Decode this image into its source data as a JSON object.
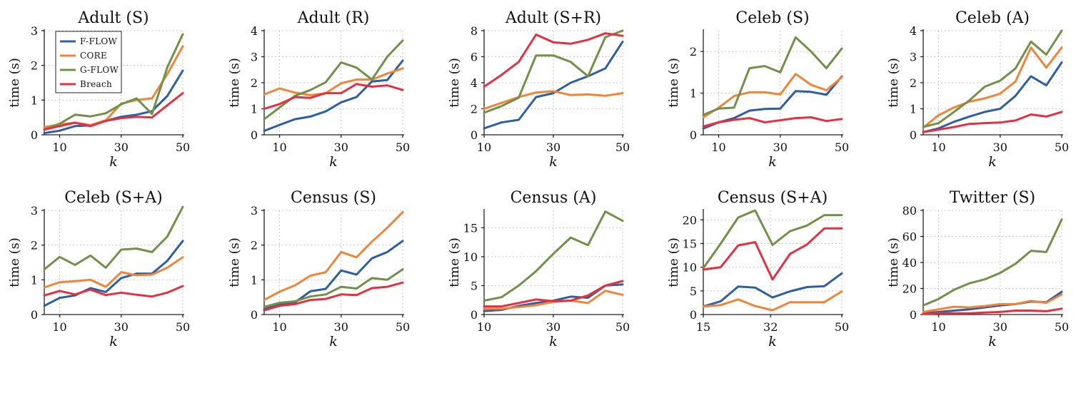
{
  "legend": [
    {
      "name": "F-FLOW",
      "color": "#2f5fa0"
    },
    {
      "name": "CORE",
      "color": "#f08539"
    },
    {
      "name": "G-FLOW",
      "color": "#72904a"
    },
    {
      "name": "Breach",
      "color": "#e43041"
    }
  ],
  "chart_data": [
    {
      "type": "line",
      "title": "Adult (S)",
      "xlabel": "k",
      "ylabel": "time (s)",
      "xlim": [
        5,
        50
      ],
      "ylim": [
        0,
        3
      ],
      "xticks": [
        10,
        30,
        50
      ],
      "yticks": [
        0,
        1,
        2,
        3
      ],
      "x": [
        5,
        10,
        15,
        20,
        25,
        30,
        35,
        40,
        45,
        50
      ],
      "series": [
        {
          "name": "F-FLOW",
          "values": [
            0.05,
            0.12,
            0.25,
            0.27,
            0.4,
            0.52,
            0.58,
            0.68,
            1.12,
            1.85
          ]
        },
        {
          "name": "CORE",
          "values": [
            0.22,
            0.3,
            0.35,
            0.28,
            0.42,
            0.9,
            1.0,
            1.05,
            1.75,
            2.55
          ]
        },
        {
          "name": "G-FLOW",
          "values": [
            0.15,
            0.32,
            0.58,
            0.53,
            0.62,
            0.88,
            1.05,
            0.6,
            1.95,
            2.9
          ]
        },
        {
          "name": "Breach",
          "values": [
            0.15,
            0.25,
            0.35,
            0.25,
            0.4,
            0.48,
            0.52,
            0.5,
            0.85,
            1.2
          ]
        }
      ]
    },
    {
      "type": "line",
      "title": "Adult (R)",
      "xlabel": "k",
      "ylabel": "time (s)",
      "xlim": [
        5,
        50
      ],
      "ylim": [
        0,
        4
      ],
      "xticks": [
        10,
        30,
        50
      ],
      "yticks": [
        0,
        1,
        2,
        3,
        4
      ],
      "x": [
        5,
        10,
        15,
        20,
        25,
        30,
        35,
        40,
        45,
        50
      ],
      "series": [
        {
          "name": "F-FLOW",
          "values": [
            0.15,
            0.38,
            0.6,
            0.7,
            0.9,
            1.25,
            1.45,
            2.05,
            2.1,
            2.85
          ]
        },
        {
          "name": "CORE",
          "values": [
            1.55,
            1.78,
            1.62,
            1.52,
            1.6,
            1.98,
            2.12,
            2.12,
            2.35,
            2.55
          ]
        },
        {
          "name": "G-FLOW",
          "values": [
            0.6,
            1.05,
            1.5,
            1.72,
            2.02,
            2.78,
            2.58,
            2.12,
            3.0,
            3.62
          ]
        },
        {
          "name": "Breach",
          "values": [
            1.0,
            1.18,
            1.45,
            1.42,
            1.6,
            1.6,
            1.95,
            1.85,
            1.9,
            1.72
          ]
        }
      ]
    },
    {
      "type": "line",
      "title": "Adult (S+R)",
      "xlabel": "k",
      "ylabel": "time (s)",
      "xlim": [
        10,
        50
      ],
      "ylim": [
        0,
        8
      ],
      "xticks": [
        10,
        30,
        50
      ],
      "yticks": [
        0,
        2,
        4,
        6,
        8
      ],
      "x": [
        10,
        15,
        20,
        25,
        30,
        35,
        40,
        45,
        50
      ],
      "series": [
        {
          "name": "F-FLOW",
          "values": [
            0.5,
            0.95,
            1.15,
            2.9,
            3.2,
            4.0,
            4.5,
            5.1,
            7.15
          ]
        },
        {
          "name": "CORE",
          "values": [
            2.0,
            2.45,
            2.9,
            3.25,
            3.35,
            3.05,
            3.1,
            3.0,
            3.2
          ]
        },
        {
          "name": "G-FLOW",
          "values": [
            1.7,
            2.2,
            2.85,
            6.1,
            6.1,
            5.6,
            4.5,
            7.5,
            8.0
          ]
        },
        {
          "name": "Breach",
          "values": [
            3.7,
            4.6,
            5.6,
            7.7,
            7.1,
            7.0,
            7.3,
            7.8,
            7.6
          ]
        }
      ]
    },
    {
      "type": "line",
      "title": "Celeb (S)",
      "xlabel": "k",
      "ylabel": "time (s)",
      "xlim": [
        5,
        50
      ],
      "ylim": [
        0,
        2.5
      ],
      "xticks": [
        10,
        30,
        50
      ],
      "yticks": [
        0,
        1,
        2
      ],
      "x": [
        5,
        10,
        15,
        20,
        25,
        30,
        35,
        40,
        45,
        50
      ],
      "series": [
        {
          "name": "F-FLOW",
          "values": [
            0.15,
            0.3,
            0.4,
            0.58,
            0.62,
            0.63,
            1.05,
            1.03,
            0.96,
            1.4
          ]
        },
        {
          "name": "CORE",
          "values": [
            0.42,
            0.65,
            0.93,
            1.02,
            1.02,
            0.97,
            1.46,
            1.2,
            1.07,
            1.38
          ]
        },
        {
          "name": "G-FLOW",
          "values": [
            0.48,
            0.63,
            0.65,
            1.6,
            1.65,
            1.5,
            2.34,
            2.0,
            1.6,
            2.07
          ]
        },
        {
          "name": "Breach",
          "values": [
            0.2,
            0.3,
            0.36,
            0.4,
            0.3,
            0.35,
            0.4,
            0.42,
            0.33,
            0.38
          ]
        }
      ]
    },
    {
      "type": "line",
      "title": "Celeb (A)",
      "xlabel": "k",
      "ylabel": "time (s)",
      "xlim": [
        5,
        50
      ],
      "ylim": [
        0,
        4
      ],
      "xticks": [
        10,
        30,
        50
      ],
      "yticks": [
        0,
        1,
        2,
        3,
        4
      ],
      "x": [
        5,
        10,
        15,
        20,
        25,
        30,
        35,
        40,
        45,
        50
      ],
      "series": [
        {
          "name": "F-FLOW",
          "values": [
            0.1,
            0.25,
            0.5,
            0.7,
            0.88,
            1.0,
            1.5,
            2.25,
            1.9,
            2.78
          ]
        },
        {
          "name": "CORE",
          "values": [
            0.28,
            0.75,
            1.05,
            1.27,
            1.4,
            1.58,
            2.05,
            3.35,
            2.58,
            3.35
          ]
        },
        {
          "name": "G-FLOW",
          "values": [
            0.3,
            0.45,
            0.88,
            1.32,
            1.85,
            2.08,
            2.55,
            3.58,
            3.08,
            4.0
          ]
        },
        {
          "name": "Breach",
          "values": [
            0.1,
            0.2,
            0.3,
            0.42,
            0.45,
            0.47,
            0.55,
            0.78,
            0.7,
            0.88
          ]
        }
      ]
    },
    {
      "type": "line",
      "title": "Celeb (S+A)",
      "xlabel": "k",
      "ylabel": "time (s)",
      "xlim": [
        5,
        50
      ],
      "ylim": [
        0,
        3
      ],
      "xticks": [
        10,
        30,
        50
      ],
      "yticks": [
        0,
        1,
        2,
        3
      ],
      "x": [
        5,
        10,
        15,
        20,
        25,
        30,
        35,
        40,
        45,
        50
      ],
      "series": [
        {
          "name": "F-FLOW",
          "values": [
            0.25,
            0.48,
            0.55,
            0.76,
            0.65,
            1.05,
            1.18,
            1.18,
            1.55,
            2.12
          ]
        },
        {
          "name": "CORE",
          "values": [
            0.78,
            0.93,
            0.96,
            1.0,
            0.8,
            1.22,
            1.13,
            1.15,
            1.35,
            1.65
          ]
        },
        {
          "name": "G-FLOW",
          "values": [
            1.3,
            1.66,
            1.43,
            1.7,
            1.35,
            1.87,
            1.9,
            1.8,
            2.25,
            3.1
          ]
        },
        {
          "name": "Breach",
          "values": [
            0.55,
            0.68,
            0.58,
            0.72,
            0.56,
            0.63,
            0.57,
            0.52,
            0.63,
            0.82
          ]
        }
      ]
    },
    {
      "type": "line",
      "title": "Census (S)",
      "xlabel": "k",
      "ylabel": "time (s)",
      "xlim": [
        5,
        50
      ],
      "ylim": [
        0,
        3
      ],
      "xticks": [
        10,
        30,
        50
      ],
      "yticks": [
        0,
        1,
        2,
        3
      ],
      "x": [
        5,
        10,
        15,
        20,
        25,
        30,
        35,
        40,
        45,
        50
      ],
      "series": [
        {
          "name": "F-FLOW",
          "values": [
            0.15,
            0.3,
            0.35,
            0.67,
            0.74,
            1.27,
            1.15,
            1.62,
            1.8,
            2.12
          ]
        },
        {
          "name": "CORE",
          "values": [
            0.42,
            0.66,
            0.84,
            1.12,
            1.22,
            1.8,
            1.65,
            2.1,
            2.5,
            2.95
          ]
        },
        {
          "name": "G-FLOW",
          "values": [
            0.22,
            0.34,
            0.38,
            0.52,
            0.58,
            0.8,
            0.75,
            1.05,
            1.0,
            1.3
          ]
        },
        {
          "name": "Breach",
          "values": [
            0.12,
            0.25,
            0.3,
            0.42,
            0.45,
            0.58,
            0.56,
            0.76,
            0.8,
            0.92
          ]
        }
      ]
    },
    {
      "type": "line",
      "title": "Census (A)",
      "xlabel": "k",
      "ylabel": "time (s)",
      "xlim": [
        10,
        50
      ],
      "ylim": [
        0,
        18
      ],
      "xticks": [
        10,
        30,
        50
      ],
      "yticks": [
        0,
        5,
        10,
        15
      ],
      "x": [
        10,
        15,
        20,
        25,
        30,
        35,
        40,
        45,
        50
      ],
      "series": [
        {
          "name": "F-FLOW",
          "values": [
            0.6,
            0.8,
            1.5,
            2.0,
            2.4,
            3.1,
            2.9,
            5.0,
            5.2
          ]
        },
        {
          "name": "CORE",
          "values": [
            1.0,
            1.0,
            1.3,
            1.6,
            2.2,
            2.4,
            2.0,
            4.1,
            3.4
          ]
        },
        {
          "name": "G-FLOW",
          "values": [
            2.4,
            3.0,
            5.0,
            7.5,
            10.5,
            13.3,
            12.0,
            17.8,
            16.2
          ]
        },
        {
          "name": "Breach",
          "values": [
            1.4,
            1.4,
            2.0,
            2.6,
            2.3,
            2.4,
            3.3,
            5.0,
            5.8
          ]
        }
      ]
    },
    {
      "type": "line",
      "title": "Census (S+A)",
      "xlabel": "k",
      "ylabel": "time (s)",
      "xlim": [
        15,
        50
      ],
      "ylim": [
        0,
        22
      ],
      "xticks": [
        15,
        32,
        50
      ],
      "yticks": [
        0,
        5,
        10,
        15,
        20
      ],
      "x": [
        15,
        19.4,
        23.8,
        28.1,
        32.5,
        36.9,
        41.2,
        45.6,
        50
      ],
      "series": [
        {
          "name": "F-FLOW",
          "values": [
            1.7,
            2.8,
            5.9,
            5.7,
            3.6,
            4.9,
            5.8,
            6.0,
            8.7
          ]
        },
        {
          "name": "CORE",
          "values": [
            1.7,
            2.0,
            3.2,
            1.8,
            0.9,
            2.6,
            2.6,
            2.6,
            4.9
          ]
        },
        {
          "name": "G-FLOW",
          "values": [
            9.8,
            15.0,
            20.5,
            22.0,
            14.7,
            17.6,
            18.8,
            21.0,
            21.0
          ]
        },
        {
          "name": "Breach",
          "values": [
            9.5,
            10.0,
            14.6,
            15.3,
            7.4,
            12.8,
            14.8,
            18.2,
            18.2
          ]
        }
      ]
    },
    {
      "type": "line",
      "title": "Twitter (S)",
      "xlabel": "k",
      "ylabel": "time (s)",
      "xlim": [
        5,
        50
      ],
      "ylim": [
        0,
        80
      ],
      "xticks": [
        10,
        30,
        50
      ],
      "yticks": [
        0,
        20,
        40,
        60,
        80
      ],
      "x": [
        5,
        10,
        15,
        20,
        25,
        30,
        35,
        40,
        45,
        50
      ],
      "series": [
        {
          "name": "F-FLOW",
          "values": [
            1.0,
            2.0,
            3.0,
            4.0,
            5.5,
            7.0,
            8.0,
            10.0,
            9.5,
            17.5
          ]
        },
        {
          "name": "CORE",
          "values": [
            2.0,
            4.0,
            6.0,
            5.5,
            6.5,
            8.0,
            8.0,
            10.5,
            9.0,
            15.5
          ]
        },
        {
          "name": "G-FLOW",
          "values": [
            7.0,
            12.0,
            19.0,
            24.0,
            27.0,
            32.0,
            39.0,
            49.0,
            48.0,
            73.0
          ]
        },
        {
          "name": "Breach",
          "values": [
            0.5,
            1.0,
            1.0,
            1.0,
            1.5,
            2.0,
            3.0,
            3.0,
            2.5,
            4.5
          ]
        }
      ]
    }
  ]
}
